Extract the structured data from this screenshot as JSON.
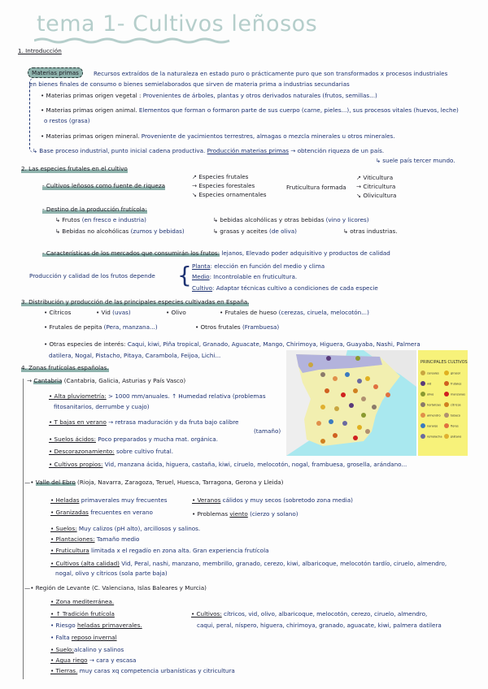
{
  "title": "tema 1- Cultivos leñosos",
  "s1": {
    "heading": "1. Introducción",
    "bubble": "Materias primas",
    "def1": "Recursos extraídos de la naturaleza en estado puro o prácticamente puro que son transformados x procesos industriales",
    "def2": "en bienes finales de consumo o bienes semielaborados que sirven de materia prima a industrias secundarias",
    "veg_k": "• Materias primas origen vegetal :",
    "veg_v": "Provenientes de árboles, plantas y otros derivados naturales (frutos, semillas...)",
    "ani_k": "• Materias primas origen animal.",
    "ani_v": "Elementos que forman o formaron parte de sus cuerpo (carne, pieles...), sus procesos vitales (huevos, leche)",
    "ani_v2": "o restos (grasa)",
    "min_k": "• Materias primas origen mineral.",
    "min_v": "Proveniente de yacimientos terrestres, almagas o mezcla minerales u otros minerales.",
    "base": "↳ Base proceso industrial, punto inicial cadena productiva.",
    "base_u": "Producción materias primas",
    "base_v": "→ obtención riqueza de un país.",
    "note": "↳ suele país tercer mundo."
  },
  "s2": {
    "heading": "2. Las especies frutales en el cultivo",
    "cult": "- Cultivos leñosos como fuente de riqueza",
    "esp": [
      "Especies frutales",
      "Especies forestales",
      "Especies ornamentales"
    ],
    "frut": "Fruticultura formada",
    "frut_items": [
      "Viticultura",
      "Citricultura",
      "Olivicultura"
    ],
    "destino": "- Destino de la producción frutícola:",
    "frutos_k": "↳ Frutos",
    "frutos_v": "(en fresco e industria)",
    "bebidas_k": "↳ Bebidas no alcohólicas",
    "bebidas_v": "(zumos y bebidas)",
    "alc_k": "↳ bebidas alcohólicas y otras bebidas",
    "alc_v": "(vino y licores)",
    "grasas_k": "↳ grasas y aceites",
    "grasas_v": "(de oliva)",
    "otras": "↳ otras industrias.",
    "carac": "- Características de los mercados que consumirán los frutos:",
    "carac_v": "lejanos, Elevado poder adquisitivo y productos de calidad",
    "prod": "Producción y calidad de los frutos depende",
    "planta_k": "Planta",
    "planta_v": ": elección en función del medio y clima",
    "medio_k": "Medio",
    "medio_v": ": Incontrolable en fruticultura.",
    "cultivo_k": "Cultivo",
    "cultivo_v": ": Adaptar técnicas cultivo a condiciones de cada especie"
  },
  "s3": {
    "heading": "3. Distribución y producción de las principales especies cultivadas en España.",
    "citricos": "• Cítricos",
    "vid_k": "• Vid",
    "vid_v": "(uvas)",
    "olivo": "• Olivo",
    "hueso_k": "• Frutales de hueso",
    "hueso_v": "(cerezas, ciruela, melocotón...)",
    "pepita_k": "• Frutales de pepita",
    "pepita_v": "(Pera, manzana...)",
    "otros_k": "• Otros frutales",
    "otros_v": "(Frambuesa)",
    "interes_k": "• Otras especies de interés:",
    "interes_v": "Caqui, kiwi, Piña tropical, Granado, Aguacate, Mango, Chirimoya, Higuera, Guayaba, Nashi, Palmera",
    "interes_v2": "datilera, Nogal, Pistacho, Pitaya, Carambola, Feijoa, Lichi..."
  },
  "s4": {
    "heading": "4. Zonas frutícolas españolas.",
    "cant": {
      "name": "Cantabria",
      "regions": "(Cantabria, Galicia, Asturias y País Vasco)",
      "alta_k": "• Alta pluviometría:",
      "alta_v": "> 1000 mm/anuales. ↑ Humedad relativa (problemas",
      "alta_v2": "fitosanitarios, derrumbe y cuajo)",
      "tbajo_k": "• T bajas en verano",
      "tbajo_v": "→ retrasa maduración y da fruta bajo calibre",
      "tamano": "(tamaño)",
      "suelos_k": "• Suelos ácidos:",
      "suelos_v": "Poco preparados y mucha mat. orgánica.",
      "desc_k": "• Descorazonamiento:",
      "desc_v": "sobre cultivo frutal.",
      "cult_k": "• Cultivos propios:",
      "cult_v": "Vid, manzana ácida, higuera, castaña, kiwi, ciruelo, melocotón, nogal, frambuesa, grosella, arándano..."
    },
    "ebro": {
      "name": "Valle del Ebro",
      "regions": "(Rioja, Navarra, Zaragoza, Teruel, Huesca, Tarragona, Gerona y Lleida)",
      "hel_k": "• Heladas",
      "hel_v": "primaverales muy frecuentes",
      "ver_k": "• Veranos",
      "ver_v": "cálidos y muy secos (sobretodo zona media)",
      "gran_k": "• Granizadas",
      "gran_v": "frecuentes en verano",
      "prob_k": "• Problemas",
      "prob_u": "viento",
      "prob_v": "(cierzo y solano)",
      "suelos_k": "• Suelos:",
      "suelos_v": "Muy calizos (pH alto), arcillosos y salinos.",
      "plant_k": "• Plantaciones:",
      "plant_v": "Tamaño medio",
      "frut_k": "• Fruticultura",
      "frut_v": "limitada x el regadío en zona alta. Gran experiencia frutícola",
      "cult_k": "• Cultivos (alta calidad)",
      "cult_v": "Vid, Peral, nashi, manzano, membrillo, granado, cerezo, kiwi, albaricoque, melocotón tardío, ciruelo, almendro,",
      "cult_v2": "nogal, olivo y cítricos (sola parte baja)"
    },
    "lev": {
      "name": "Región de Levante",
      "regions": "(C. Valenciana, Islas Baleares y Murcia)",
      "zona": "• Zona mediterránea.",
      "trad": "• ↑ Tradición frutícola",
      "riesgo_k": "• Riesgo",
      "riesgo_u": "heladas primaverales.",
      "falta_k": "• Falta",
      "falta_u": "reposo invernal",
      "suelo_k": "• Suelo:",
      "suelo_v": "alcalino y salinos",
      "agua_k": "• Agua riego",
      "agua_v": "→ cara y escasa",
      "tierras_k": "• Tierras.",
      "tierras_v": "muy caras xq competencia urbanísticas y citricultura",
      "cult_k": "• Cultivos:",
      "cult_v": "cítricos, vid, olivo, albaricoque, melocotón, cerezo, ciruelo, almendro,",
      "cult_v2": "caqui, peral, níspero, higuera, chirimoya, granado, aguacate, kiwi, palmera datilera"
    }
  },
  "map": {
    "legend_title": "PRINCIPALES CULTIVOS",
    "legend": [
      "cereales",
      "vid",
      "olivo",
      "hortalizas",
      "almendro",
      "naranjo",
      "remolacha",
      "girasol",
      "frutales",
      "manzanas",
      "cítricos",
      "tabaco",
      "flores",
      "plátano"
    ],
    "colors": {
      "sea": "#a9e8ef",
      "land": "#f2efb0",
      "north": "#b3b3dc",
      "legend_bg": "#f7f27a"
    }
  }
}
